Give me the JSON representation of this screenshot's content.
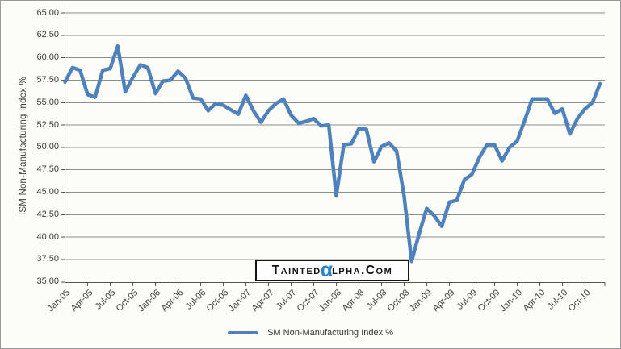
{
  "chart_data": {
    "type": "line",
    "title": "",
    "ylabel": "ISM Non-Manufacturing Index %",
    "ylim": [
      35,
      65
    ],
    "y_tick_step": 2.5,
    "grid": true,
    "legend_position": "bottom",
    "y_tick_labels": [
      "65.00",
      "62.50",
      "60.00",
      "57.50",
      "55.00",
      "52.50",
      "50.00",
      "47.50",
      "45.00",
      "42.50",
      "40.00",
      "37.50",
      "35.00"
    ],
    "x_tick_labels": [
      "Jan-05",
      "Apr-05",
      "Jul-05",
      "Oct-05",
      "Jan-06",
      "Apr-06",
      "Jul-06",
      "Oct-06",
      "Jan-07",
      "Apr-07",
      "Jul-07",
      "Oct-07",
      "Jan-08",
      "Apr-08",
      "Jul-08",
      "Oct-08",
      "Jan-09",
      "Apr-09",
      "Jul-09",
      "Oct-09",
      "Jan-10",
      "Apr-10",
      "Jul-10",
      "Oct-10"
    ],
    "series": [
      {
        "name": "ISM Non-Manufacturing Index %",
        "x": [
          "Jan-05",
          "Feb-05",
          "Mar-05",
          "Apr-05",
          "May-05",
          "Jun-05",
          "Jul-05",
          "Aug-05",
          "Sep-05",
          "Oct-05",
          "Nov-05",
          "Dec-05",
          "Jan-06",
          "Feb-06",
          "Mar-06",
          "Apr-06",
          "May-06",
          "Jun-06",
          "Jul-06",
          "Aug-06",
          "Sep-06",
          "Oct-06",
          "Nov-06",
          "Dec-06",
          "Jan-07",
          "Feb-07",
          "Mar-07",
          "Apr-07",
          "May-07",
          "Jun-07",
          "Jul-07",
          "Aug-07",
          "Sep-07",
          "Oct-07",
          "Nov-07",
          "Dec-07",
          "Jan-08",
          "Feb-08",
          "Mar-08",
          "Apr-08",
          "May-08",
          "Jun-08",
          "Jul-08",
          "Aug-08",
          "Sep-08",
          "Oct-08",
          "Nov-08",
          "Dec-08",
          "Jan-09",
          "Feb-09",
          "Mar-09",
          "Apr-09",
          "May-09",
          "Jun-09",
          "Jul-09",
          "Aug-09",
          "Sep-09",
          "Oct-09",
          "Nov-09",
          "Dec-09",
          "Jan-10",
          "Feb-10",
          "Mar-10",
          "Apr-10",
          "May-10",
          "Jun-10",
          "Jul-10",
          "Aug-10",
          "Sep-10",
          "Oct-10",
          "Nov-10",
          "Dec-10"
        ],
        "values": [
          57.3,
          58.9,
          58.6,
          55.9,
          55.6,
          58.6,
          58.8,
          61.3,
          56.2,
          57.8,
          59.2,
          58.9,
          56.0,
          57.4,
          57.5,
          58.5,
          57.7,
          55.5,
          55.4,
          54.1,
          54.9,
          54.7,
          54.2,
          53.7,
          55.8,
          54.1,
          52.8,
          54.1,
          54.9,
          55.4,
          53.6,
          52.7,
          52.9,
          53.2,
          52.4,
          52.5,
          44.6,
          50.3,
          50.4,
          52.1,
          52.0,
          48.4,
          50.1,
          50.5,
          49.6,
          44.6,
          37.3,
          40.4,
          43.2,
          42.4,
          41.2,
          43.9,
          44.1,
          46.4,
          47.0,
          48.9,
          50.3,
          50.3,
          48.5,
          50.0,
          50.7,
          53.0,
          55.4,
          55.4,
          55.4,
          53.8,
          54.3,
          51.5,
          53.2,
          54.3,
          55.0,
          57.1
        ]
      }
    ]
  },
  "y_axis": {
    "title": "ISM Non-Manufacturing Index %"
  },
  "legend": {
    "label": "ISM Non-Manufacturing Index %"
  },
  "watermark": {
    "part1": "Tainted",
    "alpha": "α",
    "part2": "lpha.Com"
  },
  "colors": {
    "series_line": "#4F81BD",
    "gridline": "#8e8e8e",
    "axis": "#545454",
    "text": "#3d3d3d",
    "watermark_alpha": "#2886c8",
    "background": "#fbfdf6"
  }
}
